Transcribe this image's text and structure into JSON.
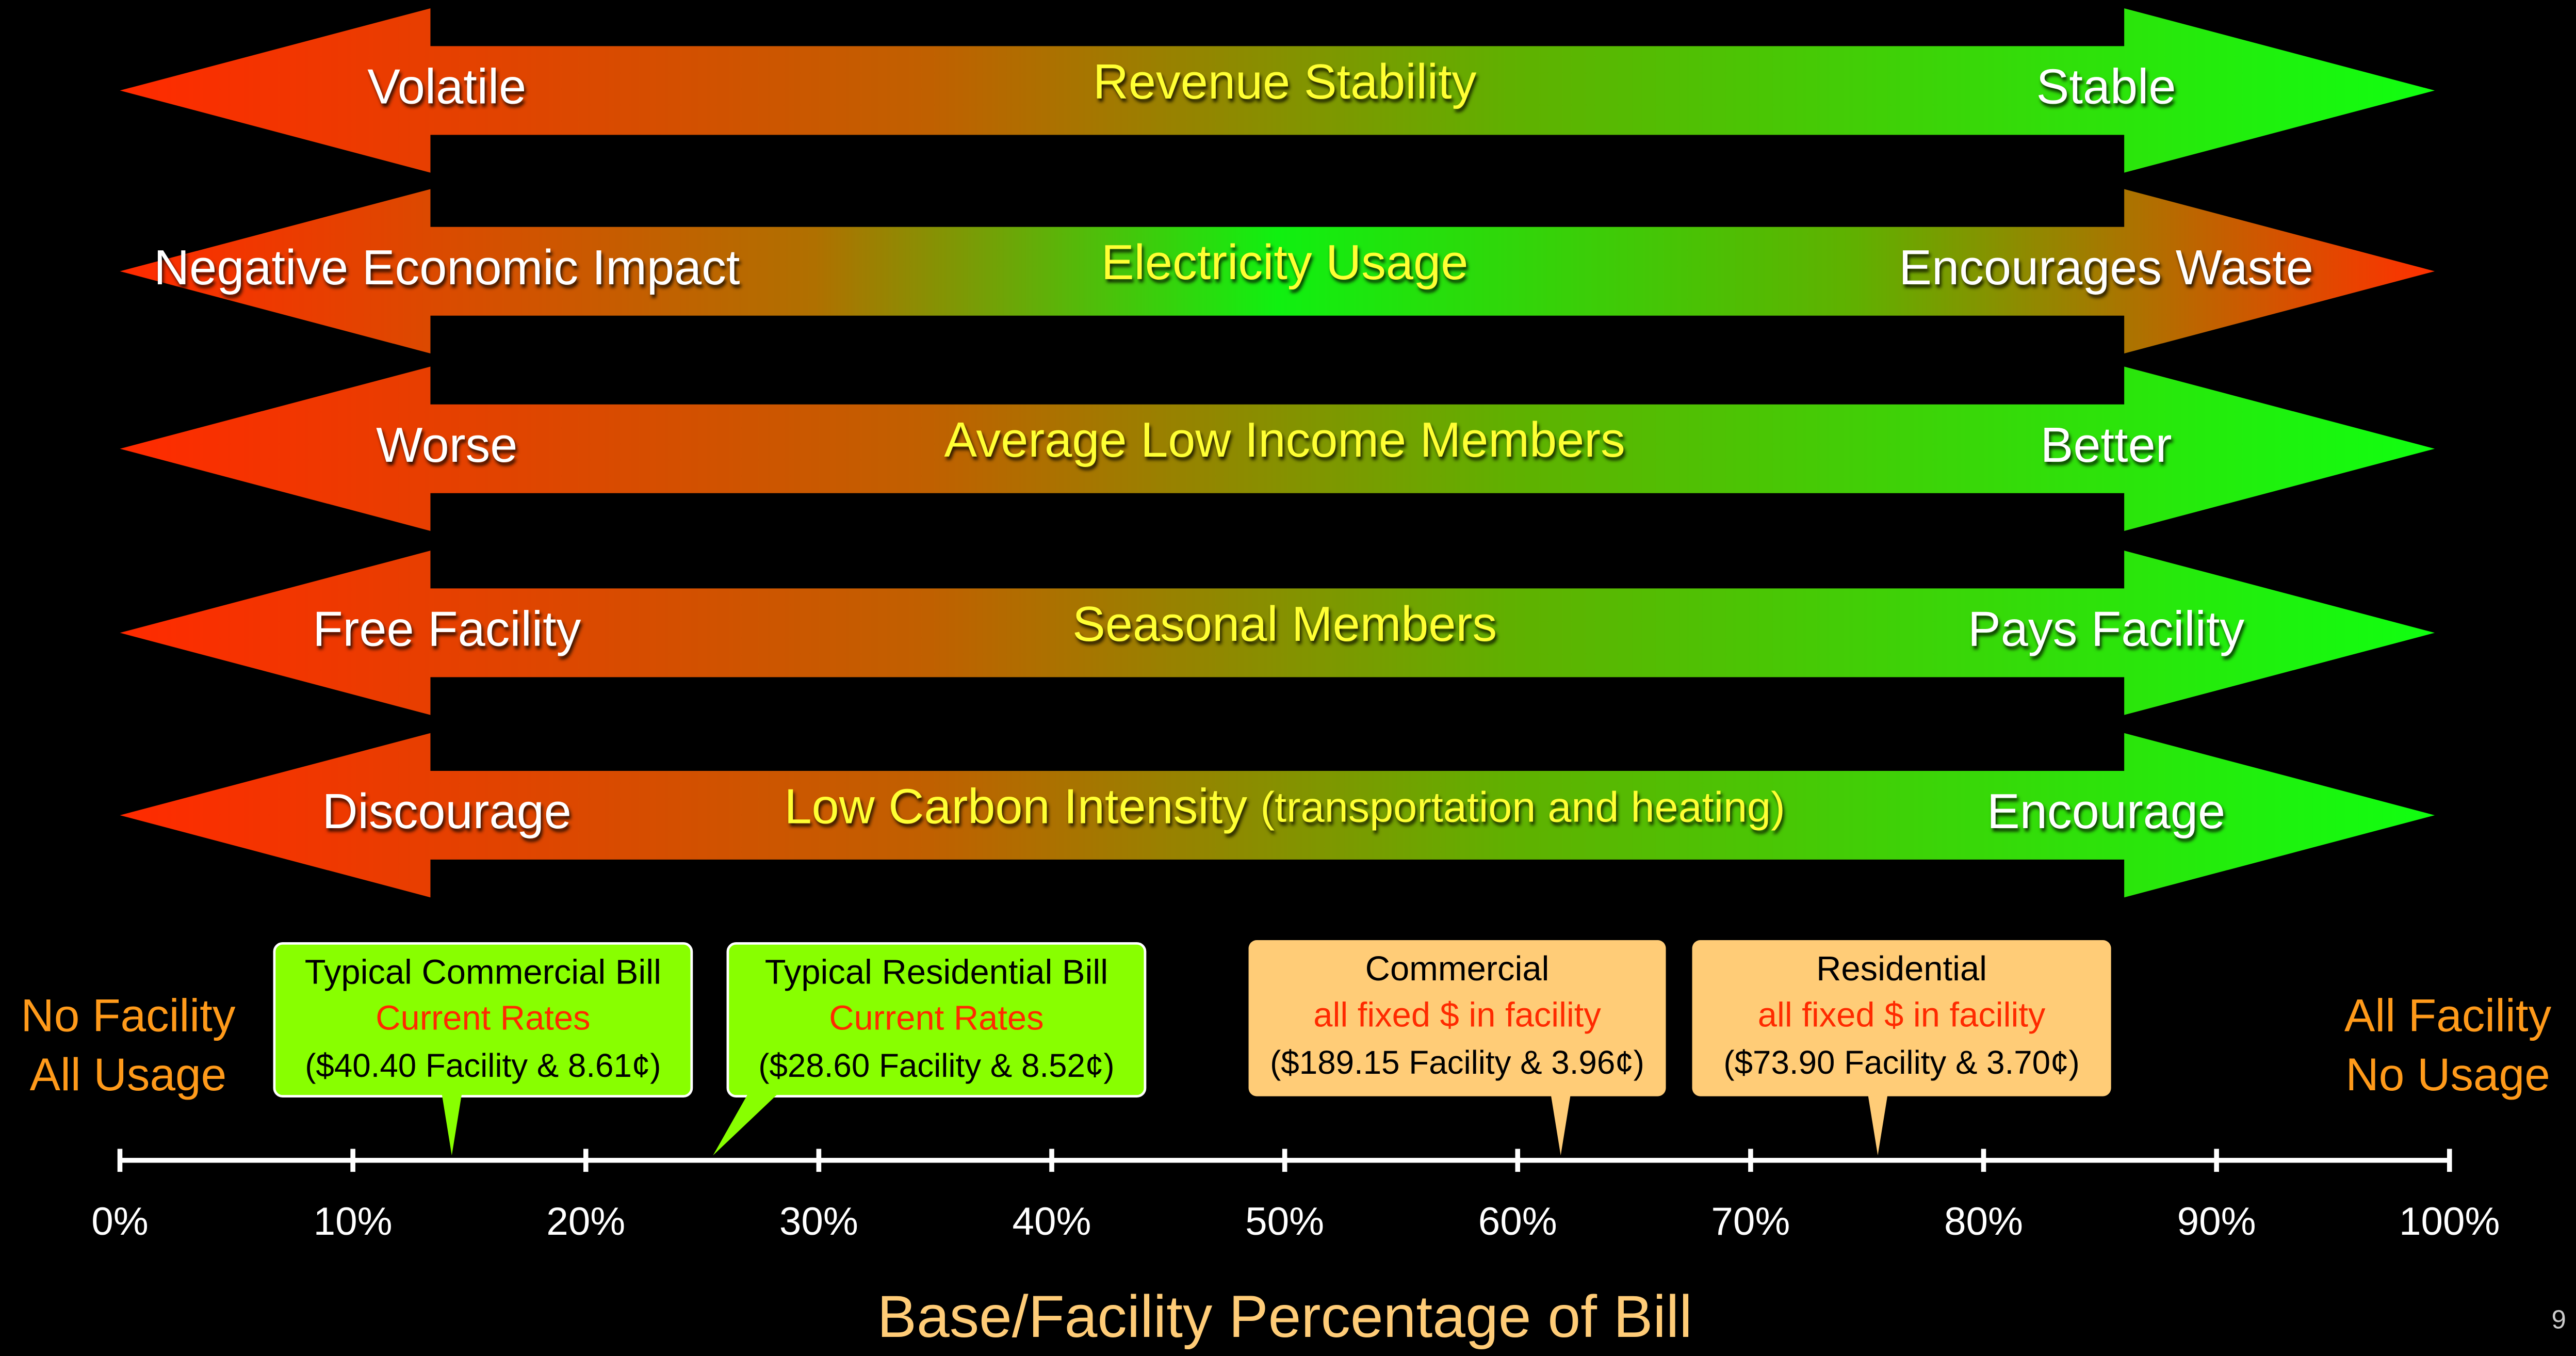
{
  "arrows": [
    {
      "left": "Volatile",
      "center": "Revenue Stability",
      "right": "Stable"
    },
    {
      "left": "Negative Economic Impact",
      "center": "Electricity Usage",
      "right": "Encourages Waste"
    },
    {
      "left": "Worse",
      "center": "Average Low Income Members",
      "right": "Better"
    },
    {
      "left": "Free Facility",
      "center": "Seasonal Members",
      "right": "Pays Facility"
    },
    {
      "left": "Discourage",
      "center": "Low Carbon Intensity",
      "note": "(transportation and heating)",
      "right": "Encourage"
    }
  ],
  "callouts": [
    {
      "title": "Typical Commercial Bill",
      "subtitle": "Current Rates",
      "detail": "($40.40 Facility & 8.61¢)"
    },
    {
      "title": "Typical Residential Bill",
      "subtitle": "Current Rates",
      "detail": "($28.60 Facility & 8.52¢)"
    },
    {
      "title": "Commercial",
      "subtitle": "all fixed $ in facility",
      "detail": "($189.15 Facility & 3.96¢)"
    },
    {
      "title": "Residential",
      "subtitle": "all fixed $ in facility",
      "detail": "($73.90 Facility & 3.70¢)"
    }
  ],
  "axis": {
    "left": [
      "No Facility",
      "All Usage"
    ],
    "right": [
      "All Facility",
      "No Usage"
    ],
    "ticks": [
      "0%",
      "10%",
      "20%",
      "30%",
      "40%",
      "50%",
      "60%",
      "70%",
      "80%",
      "90%",
      "100%"
    ],
    "label": "Base/Facility Percentage of Bill"
  },
  "page_number": "9"
}
